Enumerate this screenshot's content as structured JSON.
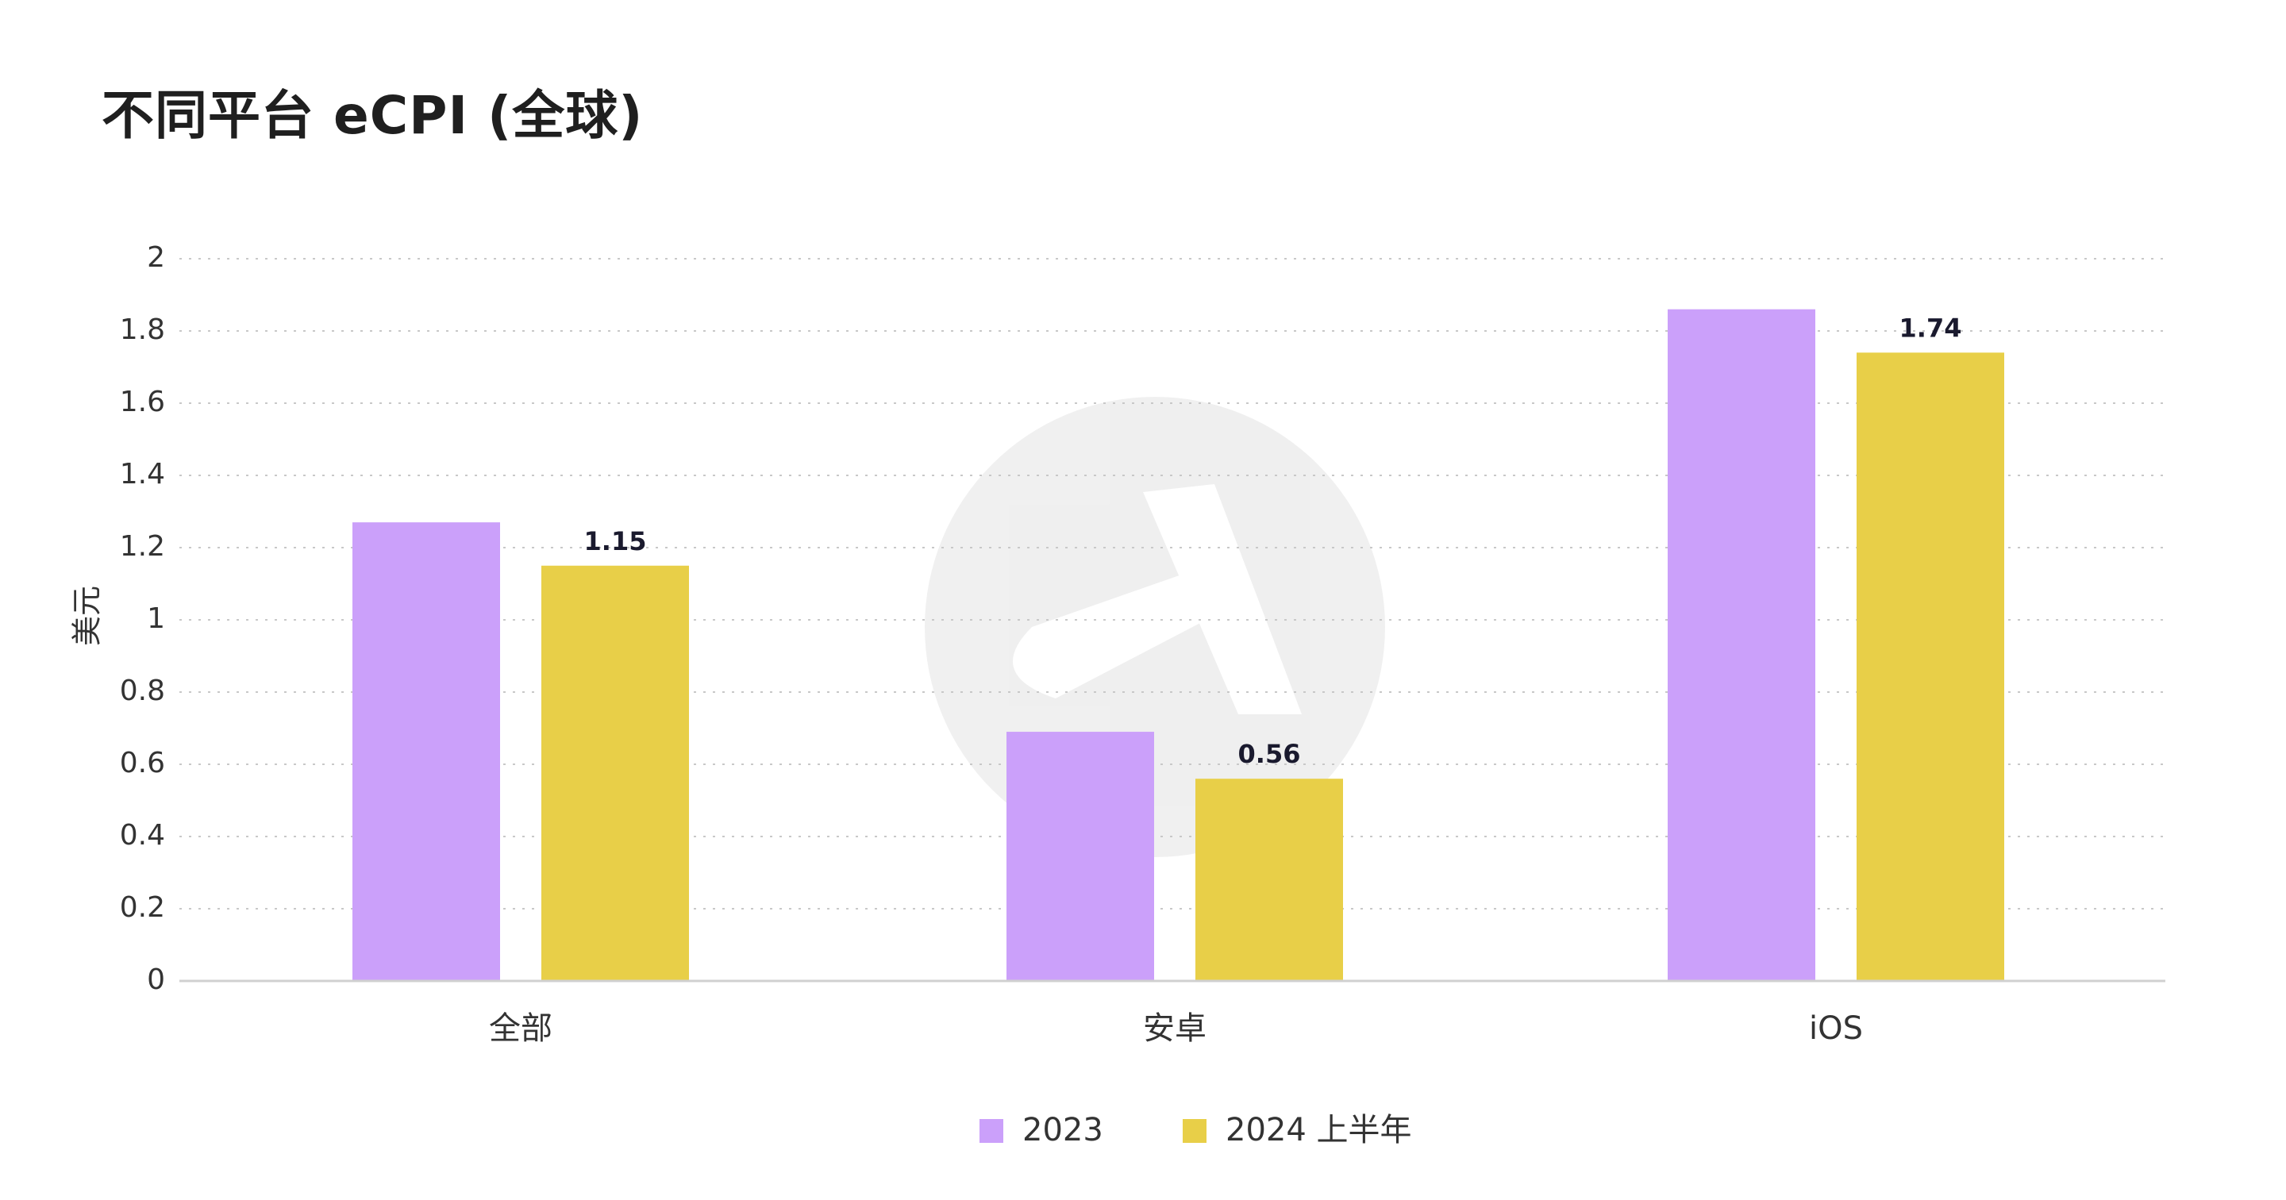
{
  "chart_data": {
    "type": "bar",
    "title": "不同平台 eCPI (全球)",
    "ylabel": "美元",
    "xlabel": "",
    "categories": [
      "全部",
      "安卓",
      "iOS"
    ],
    "series": [
      {
        "name": "2023",
        "values": [
          1.27,
          0.69,
          1.86
        ],
        "labels": [
          "",
          "",
          ""
        ]
      },
      {
        "name": "2024 上半年",
        "values": [
          1.15,
          0.56,
          1.74
        ],
        "labels": [
          "1.15",
          "0.56",
          "1.74"
        ]
      }
    ],
    "ylim": [
      0,
      2
    ],
    "yticks": [
      "0",
      "0.2",
      "0.4",
      "0.6",
      "0.8",
      "1",
      "1.2",
      "1.4",
      "1.6",
      "1.8",
      "2"
    ],
    "grid": true,
    "legend_position": "bottom-center",
    "colors": {
      "series_2023": "#cba0fa",
      "series_2024h1": "#e8cf48",
      "grid": "#c8c8c8",
      "axis": "#d0d0d0"
    }
  }
}
